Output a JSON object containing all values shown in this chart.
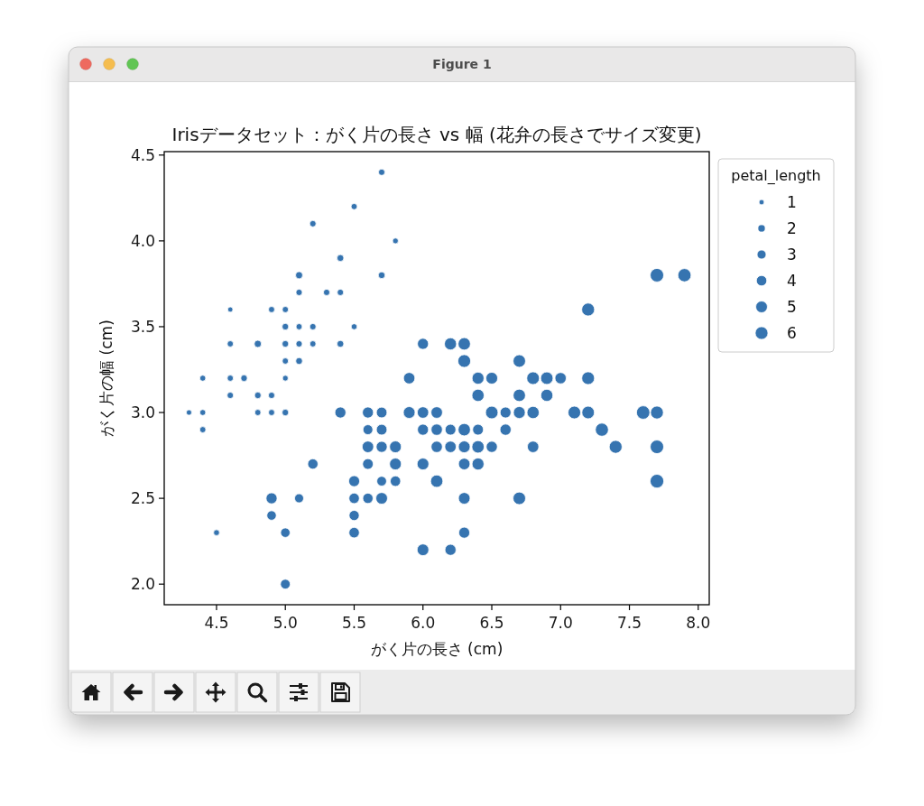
{
  "chart_data": {
    "type": "bubble",
    "title": "Irisデータセット：がく片の長さ vs 幅 (花弁の長さでサイズ変更)",
    "xlabel": "がく片の長さ (cm)",
    "ylabel": "がく片の幅 (cm)",
    "legend_title": "petal_length",
    "annotations": [
      "Figure 1"
    ],
    "x": [
      5.1,
      4.9,
      4.7,
      4.6,
      5.0,
      5.4,
      4.6,
      5.0,
      4.4,
      4.9,
      5.4,
      4.8,
      4.8,
      4.3,
      5.8,
      5.7,
      5.7,
      5.1,
      5.4,
      5.1,
      4.6,
      5.1,
      5.0,
      5.2,
      5.2,
      4.8,
      5.2,
      5.5,
      5.0,
      5.5,
      4.9,
      4.4,
      5.1,
      5.0,
      4.5,
      4.4,
      4.6,
      5.3,
      5.0,
      7.0,
      6.4,
      6.9,
      5.5,
      6.5,
      5.7,
      6.3,
      4.9,
      6.6,
      5.2,
      5.0,
      5.9,
      6.0,
      6.1,
      5.6,
      6.7,
      5.6,
      5.8,
      6.2,
      5.6,
      5.9,
      6.1,
      6.3,
      6.4,
      6.6,
      6.8,
      6.7,
      6.0,
      5.7,
      5.5,
      6.0,
      5.4,
      6.0,
      6.3,
      6.1,
      5.5,
      5.5,
      5.8,
      5.0,
      5.6,
      5.7,
      5.7,
      6.2,
      5.1,
      7.1,
      6.3,
      6.5,
      7.6,
      4.9,
      7.3,
      6.7,
      7.2,
      6.5,
      6.4,
      6.8,
      5.7,
      5.8,
      7.7,
      7.7,
      6.9,
      5.6,
      7.7,
      6.3,
      6.7,
      7.2,
      6.2,
      6.4,
      7.2,
      7.4,
      7.9,
      6.3,
      6.1,
      7.7,
      6.3,
      6.4,
      6.0,
      6.8,
      6.2
    ],
    "values": [
      3.5,
      3.0,
      3.2,
      3.1,
      3.6,
      3.9,
      3.4,
      3.4,
      2.9,
      3.1,
      3.7,
      3.4,
      3.0,
      3.0,
      4.0,
      4.4,
      3.8,
      3.8,
      3.4,
      3.7,
      3.6,
      3.3,
      3.0,
      3.5,
      3.4,
      3.1,
      4.1,
      4.2,
      3.2,
      3.5,
      3.6,
      3.0,
      3.4,
      3.5,
      2.3,
      3.2,
      3.2,
      3.7,
      3.3,
      3.2,
      3.2,
      3.1,
      2.3,
      2.8,
      2.8,
      3.3,
      2.4,
      2.9,
      2.7,
      2.0,
      3.0,
      2.2,
      2.9,
      2.9,
      3.1,
      3.0,
      2.7,
      2.2,
      2.5,
      3.2,
      2.8,
      2.5,
      2.9,
      3.0,
      2.8,
      3.0,
      2.9,
      2.6,
      2.4,
      2.7,
      3.0,
      3.4,
      2.3,
      3.0,
      2.5,
      2.6,
      2.6,
      2.3,
      2.7,
      3.0,
      2.9,
      2.9,
      2.5,
      3.0,
      2.9,
      3.0,
      3.0,
      2.5,
      2.9,
      2.5,
      3.6,
      3.2,
      2.7,
      3.0,
      2.5,
      2.8,
      3.8,
      2.6,
      3.2,
      2.8,
      2.8,
      2.7,
      3.3,
      3.2,
      2.8,
      2.8,
      3.0,
      2.8,
      3.8,
      2.8,
      2.6,
      3.0,
      3.4,
      3.1,
      3.0,
      3.2,
      3.4
    ],
    "sizes": [
      1.4,
      1.4,
      1.6,
      1.5,
      1.4,
      1.7,
      1.4,
      1.6,
      1.4,
      1.5,
      1.5,
      1.9,
      1.4,
      1.1,
      1.2,
      1.5,
      1.7,
      1.9,
      1.7,
      1.5,
      1.0,
      1.7,
      1.6,
      1.5,
      1.4,
      1.6,
      1.5,
      1.4,
      1.2,
      1.3,
      1.4,
      1.3,
      1.5,
      1.6,
      1.3,
      1.3,
      1.4,
      1.5,
      1.4,
      4.7,
      5.3,
      5.4,
      4.0,
      4.6,
      4.5,
      6.0,
      3.3,
      4.6,
      3.9,
      3.5,
      5.1,
      5.0,
      4.7,
      3.6,
      5.6,
      4.5,
      5.1,
      4.5,
      3.9,
      4.8,
      4.7,
      5.0,
      4.3,
      4.4,
      4.8,
      5.2,
      4.5,
      3.5,
      3.8,
      5.1,
      4.5,
      4.5,
      4.4,
      4.9,
      4.0,
      4.4,
      4.0,
      3.3,
      4.2,
      4.2,
      4.2,
      4.3,
      3.0,
      5.9,
      5.6,
      5.8,
      6.6,
      4.5,
      6.3,
      5.8,
      6.1,
      5.1,
      5.3,
      5.5,
      5.0,
      5.1,
      6.7,
      6.9,
      5.7,
      4.9,
      6.7,
      4.9,
      5.7,
      6.0,
      4.8,
      5.6,
      5.8,
      6.1,
      6.4,
      5.1,
      5.6,
      6.1,
      5.6,
      5.5,
      4.8,
      5.9,
      5.4
    ],
    "size_legend": [
      1,
      2,
      3,
      4,
      5,
      6
    ],
    "color": "#3674b0",
    "marker": "circle",
    "xlim": [
      4.12,
      8.08
    ],
    "ylim": [
      1.88,
      4.52
    ],
    "xticks": [
      4.5,
      {
        "value": 5,
        "label": "5.0"
      },
      5.5,
      {
        "value": 6,
        "label": "6.0"
      },
      6.5,
      {
        "value": 7,
        "label": "7.0"
      },
      7.5,
      {
        "value": 8,
        "label": "8.0"
      }
    ],
    "yticks": [
      {
        "value": 2,
        "label": "2.0"
      },
      2.5,
      {
        "value": 3,
        "label": "3.0"
      },
      3.5,
      {
        "value": 4,
        "label": "4.0"
      },
      4.5
    ]
  }
}
